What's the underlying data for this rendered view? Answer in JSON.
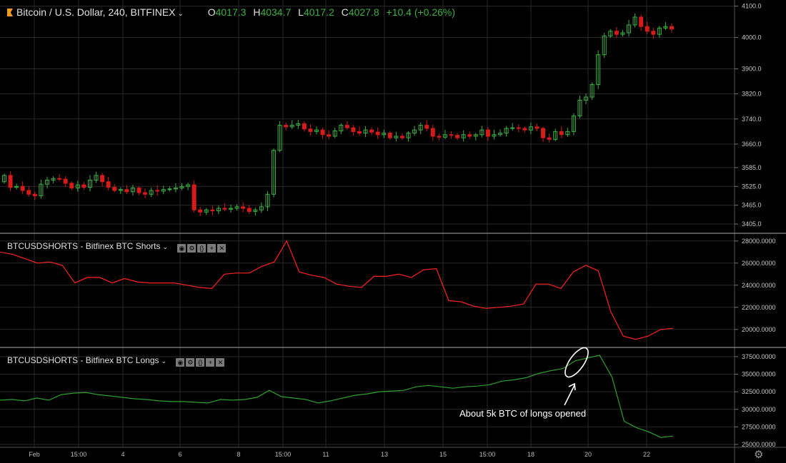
{
  "header": {
    "symbol": "Bitcoin / U.S. Dollar, 240, BITFINEX",
    "o_label": "O",
    "o": "4017.3",
    "h_label": "H",
    "h": "4034.7",
    "l_label": "L",
    "l": "4017.2",
    "c_label": "C",
    "c": "4027.8",
    "change": "+10.4 (+0.26%)"
  },
  "panel_shorts_label": "BTCUSDSHORTS - Bitfinex BTC Shorts",
  "panel_longs_label": "BTCUSDSHORTS - Bitfinex BTC Longs",
  "annotation": "About 5k BTC of longs opened",
  "x_ticks": [
    "Feb",
    "15:00",
    "4",
    "6",
    "8",
    "15:00",
    "11",
    "13",
    "15",
    "15:00",
    "18",
    "20",
    "22"
  ],
  "colors": {
    "up": "#3cb043",
    "down": "#d61b1b",
    "shorts_line": "#ff2020",
    "longs_line": "#2ea02e",
    "grid": "#2a2a2a"
  },
  "chart_data": [
    {
      "type": "candlestick",
      "title": "Bitcoin / U.S. Dollar, 240, BITFINEX",
      "y_ticks": [
        4100,
        4000,
        3900,
        3820,
        3740,
        3660,
        3585,
        3525,
        3465,
        3405
      ],
      "ylim": [
        3380,
        4115
      ],
      "close": [
        3560,
        3522,
        3525,
        3512,
        3500,
        3495,
        3532,
        3545,
        3550,
        3548,
        3535,
        3520,
        3530,
        3522,
        3545,
        3560,
        3540,
        3522,
        3512,
        3515,
        3508,
        3520,
        3505,
        3500,
        3512,
        3510,
        3515,
        3517,
        3520,
        3525,
        3530,
        3450,
        3443,
        3450,
        3447,
        3455,
        3452,
        3455,
        3460,
        3455,
        3445,
        3450,
        3460,
        3500,
        3640,
        3720,
        3715,
        3720,
        3725,
        3708,
        3700,
        3705,
        3690,
        3685,
        3702,
        3720,
        3712,
        3700,
        3695,
        3705,
        3698,
        3690,
        3695,
        3680,
        3685,
        3680,
        3695,
        3705,
        3720,
        3710,
        3685,
        3682,
        3690,
        3688,
        3680,
        3690,
        3685,
        3690,
        3705,
        3685,
        3690,
        3695,
        3710,
        3712,
        3710,
        3705,
        3715,
        3710,
        3680,
        3675,
        3700,
        3690,
        3700,
        3750,
        3800,
        3810,
        3850,
        3945,
        4005,
        4020,
        4010,
        4015,
        4040,
        4065,
        4035,
        4020,
        4010,
        4030,
        4035,
        4027
      ]
    },
    {
      "type": "line",
      "name": "BTCUSDSHORTS - Bitfinex BTC Shorts",
      "y_ticks": [
        28000,
        26000,
        24000,
        22000,
        20000
      ],
      "ylim": [
        18500,
        28500
      ],
      "values": [
        27000,
        26800,
        26400,
        26000,
        26100,
        25800,
        24200,
        24700,
        24700,
        24200,
        24600,
        24300,
        24200,
        24200,
        24200,
        24000,
        23800,
        23700,
        25000,
        25100,
        25100,
        25700,
        26100,
        28000,
        25200,
        24900,
        24700,
        24100,
        23900,
        23800,
        24800,
        24800,
        25000,
        24700,
        25400,
        25500,
        22600,
        22500,
        22100,
        21900,
        22000,
        22100,
        22300,
        24100,
        24100,
        23700,
        25200,
        25800,
        25300,
        21600,
        19400,
        19100,
        19400,
        20000,
        20100
      ]
    },
    {
      "type": "line",
      "name": "BTCUSDSHORTS - Bitfinex BTC Longs",
      "y_ticks": [
        37500,
        35000,
        32500,
        30000,
        27500,
        25000
      ],
      "ylim": [
        24800,
        38500
      ],
      "values": [
        31300,
        31400,
        31200,
        31600,
        31300,
        32100,
        32300,
        32400,
        32100,
        31900,
        31700,
        31500,
        31400,
        31200,
        31100,
        31100,
        31000,
        30900,
        31400,
        31300,
        31400,
        31700,
        32700,
        31800,
        31600,
        31400,
        30900,
        31200,
        31600,
        32000,
        32200,
        32500,
        32600,
        32700,
        33200,
        33400,
        33200,
        33000,
        33200,
        33300,
        33500,
        34000,
        34200,
        34500,
        35100,
        35500,
        35800,
        36900,
        37300,
        37700,
        34600,
        28300,
        27400,
        26800,
        26000,
        26200
      ]
    }
  ]
}
